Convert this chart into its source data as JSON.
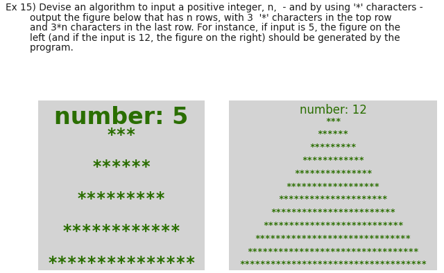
{
  "n5": 5,
  "n12": 12,
  "label5": "number: 5",
  "label12": "number: 12",
  "star_color": "#2a6e00",
  "label5_color": "#2a6e00",
  "label12_color": "#2a6e00",
  "box_color": "#d3d3d3",
  "bg_color": "#ffffff",
  "text_color": "#1a1a1a",
  "title_fontsize": 9.8,
  "label5_fontsize": 24,
  "label12_fontsize": 12,
  "star_fontsize5": 17,
  "star_fontsize12": 9,
  "title_lines": [
    "Ex 15) Devise an algorithm to input a positive integer, n,  - and by using '*' characters -",
    "        output the figure below that has n rows, with 3  '*' characters in the top row",
    "        and 3*n characters in the last row. For instance, if input is 5, the figure on the",
    "        left (and if the input is 12, the figure on the right) should be generated by the",
    "        program."
  ]
}
